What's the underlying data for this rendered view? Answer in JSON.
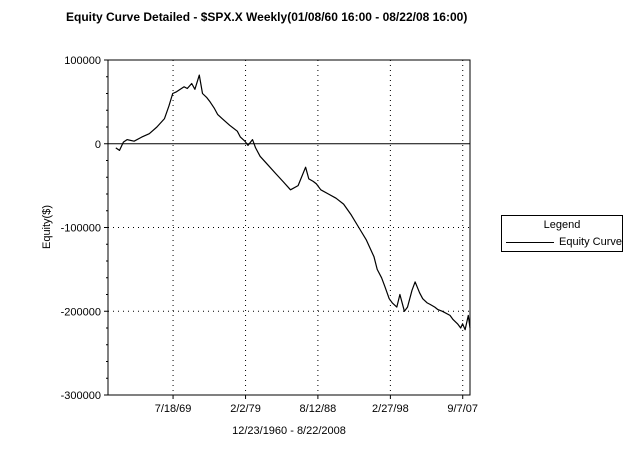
{
  "title": "Equity Curve Detailed - $SPX.X Weekly(01/08/60 16:00 - 08/22/08 16:00)",
  "legend": {
    "title": "Legend",
    "entries": [
      {
        "label": "Equity Curve",
        "color": "#000000"
      }
    ]
  },
  "chart_data": {
    "type": "line",
    "title": "Equity Curve Detailed - $SPX.X Weekly(01/08/60 16:00 - 08/22/08 16:00)",
    "xlabel": "12/23/1960 - 8/22/2008",
    "ylabel": "Equity($)",
    "ylim": [
      -300000,
      100000
    ],
    "yticks": [
      100000,
      0,
      -100000,
      -200000,
      -300000
    ],
    "ytick_labels": [
      "100000",
      "0",
      "-100000",
      "-200000",
      "-300000"
    ],
    "xlim": [
      "1960-12-23",
      "2008-08-22"
    ],
    "xticks": [
      "1969-07-18",
      "1979-02-02",
      "1988-08-12",
      "1998-02-27",
      "2007-09-07"
    ],
    "xtick_labels": [
      "7/18/69",
      "2/2/79",
      "8/12/88",
      "2/27/98",
      "9/7/07"
    ],
    "grid": "dotted",
    "legend_position": "right",
    "series": [
      {
        "name": "Equity Curve",
        "color": "#000000",
        "x": [
          "1962-01-01",
          "1962-07-01",
          "1963-01-01",
          "1963-07-01",
          "1964-06-01",
          "1965-06-01",
          "1966-06-01",
          "1967-06-01",
          "1968-06-01",
          "1969-01-01",
          "1969-07-01",
          "1970-01-01",
          "1970-07-01",
          "1971-01-01",
          "1971-06-01",
          "1972-01-01",
          "1972-06-01",
          "1973-01-01",
          "1973-06-01",
          "1974-01-01",
          "1974-06-01",
          "1975-01-01",
          "1975-06-01",
          "1976-01-01",
          "1977-01-01",
          "1978-01-01",
          "1978-06-01",
          "1979-01-01",
          "1979-06-01",
          "1980-01-01",
          "1980-06-01",
          "1981-01-01",
          "1982-01-01",
          "1983-01-01",
          "1984-01-01",
          "1985-01-01",
          "1986-01-01",
          "1987-01-01",
          "1987-06-01",
          "1988-01-01",
          "1988-06-01",
          "1989-01-01",
          "1990-01-01",
          "1991-01-01",
          "1992-01-01",
          "1993-01-01",
          "1994-01-01",
          "1995-01-01",
          "1996-01-01",
          "1996-06-01",
          "1997-01-01",
          "1997-06-01",
          "1998-01-01",
          "1998-06-01",
          "1999-01-01",
          "1999-06-01",
          "2000-01-01",
          "2000-06-01",
          "2001-01-01",
          "2001-06-01",
          "2002-01-01",
          "2002-06-01",
          "2003-01-01",
          "2003-06-01",
          "2004-01-01",
          "2004-06-01",
          "2005-01-01",
          "2006-01-01",
          "2006-06-01",
          "2007-01-01",
          "2007-06-01",
          "2007-09-01",
          "2008-01-01",
          "2008-06-01",
          "2008-08-22"
        ],
        "y": [
          -5000,
          -8000,
          2000,
          5000,
          3000,
          8000,
          12000,
          20000,
          30000,
          45000,
          60000,
          62000,
          65000,
          68000,
          66000,
          72000,
          65000,
          82000,
          60000,
          55000,
          50000,
          42000,
          35000,
          30000,
          22000,
          15000,
          8000,
          3000,
          -2000,
          5000,
          -5000,
          -15000,
          -25000,
          -35000,
          -45000,
          -55000,
          -50000,
          -28000,
          -42000,
          -45000,
          -48000,
          -55000,
          -60000,
          -65000,
          -72000,
          -85000,
          -100000,
          -115000,
          -135000,
          -150000,
          -160000,
          -170000,
          -185000,
          -190000,
          -195000,
          -180000,
          -200000,
          -195000,
          -175000,
          -165000,
          -178000,
          -185000,
          -190000,
          -192000,
          -195000,
          -198000,
          -200000,
          -205000,
          -210000,
          -215000,
          -220000,
          -215000,
          -222000,
          -205000,
          -220000
        ]
      }
    ]
  }
}
